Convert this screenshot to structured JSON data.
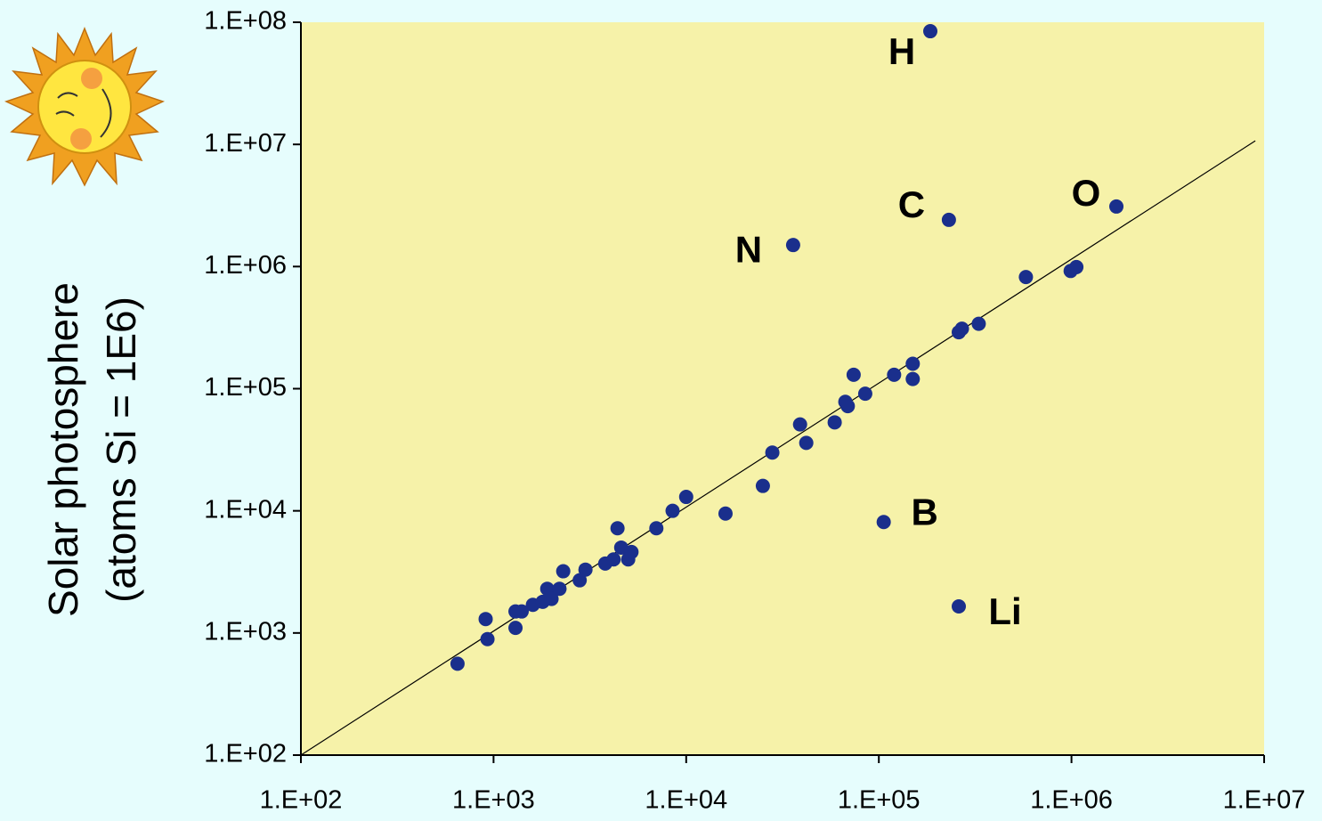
{
  "chart_data": {
    "type": "scatter",
    "y_label": [
      "Solar photosphere",
      "(atoms Si = 1E6)"
    ],
    "log_x": true,
    "log_y": true,
    "xlim": [
      100,
      10000000
    ],
    "ylim": [
      100,
      100000000
    ],
    "xticks": [
      {
        "value": 100,
        "label": "1.E+02"
      },
      {
        "value": 1000,
        "label": "1.E+03"
      },
      {
        "value": 10000,
        "label": "1.E+04"
      },
      {
        "value": 100000,
        "label": "1.E+05"
      },
      {
        "value": 1000000,
        "label": "1.E+06"
      },
      {
        "value": 10000000,
        "label": "1.E+07"
      }
    ],
    "yticks": [
      {
        "value": 100,
        "label": "1.E+02"
      },
      {
        "value": 1000,
        "label": "1.E+03"
      },
      {
        "value": 10000,
        "label": "1.E+04"
      },
      {
        "value": 100000,
        "label": "1.E+05"
      },
      {
        "value": 1000000,
        "label": "1.E+06"
      },
      {
        "value": 10000000,
        "label": "1.E+07"
      },
      {
        "value": 100000000,
        "label": "1.E+08"
      }
    ],
    "plot_color": "#f6f2a9",
    "color": "#1a2f8c",
    "reference_line": {
      "x": [
        100,
        9000000
      ],
      "y": [
        100,
        10700000
      ],
      "color": "#000000"
    },
    "x": [
      185000,
      231000,
      1710000,
      35900,
      106000,
      260000,
      650,
      910,
      930,
      1300,
      1300,
      1400,
      1600,
      1800,
      1900,
      2000,
      2200,
      2300,
      2800,
      3000,
      3800,
      4200,
      4400,
      4600,
      5000,
      5200,
      7000,
      8500,
      10000,
      16000,
      25000,
      28000,
      39000,
      42000,
      59000,
      67000,
      69000,
      74000,
      85000,
      120000,
      150000,
      150000,
      260000,
      270000,
      330000,
      580000,
      990000,
      1060000
    ],
    "y": [
      84500000,
      2410000,
      3100000,
      1500000,
      8100,
      1650,
      560,
      1300,
      890,
      1100,
      1500,
      1500,
      1700,
      1800,
      2300,
      1900,
      2300,
      3200,
      2700,
      3300,
      3700,
      4000,
      7200,
      5000,
      4000,
      4600,
      7200,
      10000,
      13000,
      9500,
      16000,
      30000,
      51000,
      36000,
      53000,
      78000,
      72000,
      130000,
      91000,
      130000,
      160000,
      120000,
      290000,
      310000,
      340000,
      820000,
      920000,
      990000
    ],
    "labels": [
      "H",
      "C",
      "O",
      "N",
      "B",
      "Li",
      null,
      null,
      null,
      null,
      null,
      null,
      null,
      null,
      null,
      null,
      null,
      null,
      null,
      null,
      null,
      null,
      null,
      null,
      null,
      null,
      null,
      null,
      null,
      null,
      null,
      null,
      null,
      null,
      null,
      null,
      null,
      null,
      null,
      null,
      null,
      null,
      null,
      null,
      null,
      null,
      null,
      null
    ]
  }
}
